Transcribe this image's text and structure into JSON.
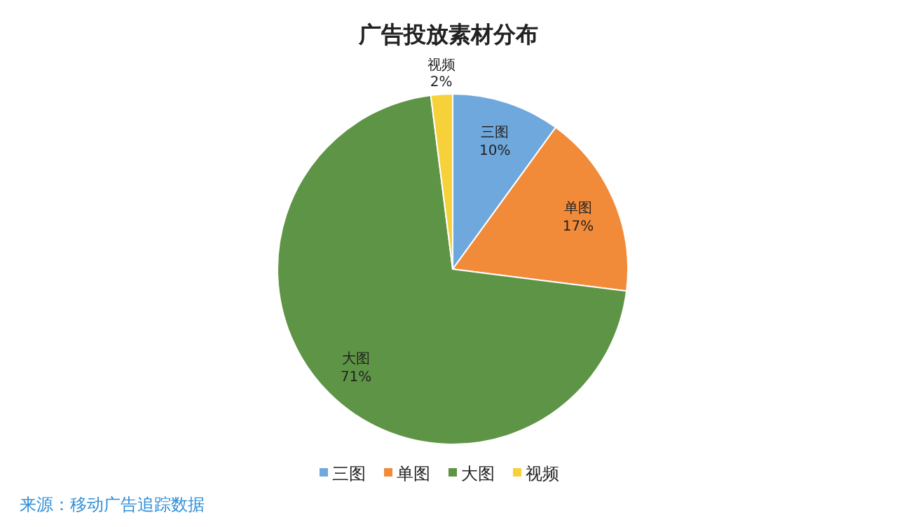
{
  "chart_data": {
    "type": "pie",
    "title": "广告投放素材分布",
    "categories": [
      "三图",
      "单图",
      "大图",
      "视频"
    ],
    "values": [
      10,
      17,
      71,
      2
    ],
    "value_labels": [
      "10%",
      "17%",
      "71%",
      "2%"
    ],
    "colors": [
      "#6fa8dc",
      "#f18b3a",
      "#5e9445",
      "#f6d13a"
    ],
    "legend": "bottom",
    "annotations": [
      "来源：移动广告追踪数据"
    ]
  }
}
